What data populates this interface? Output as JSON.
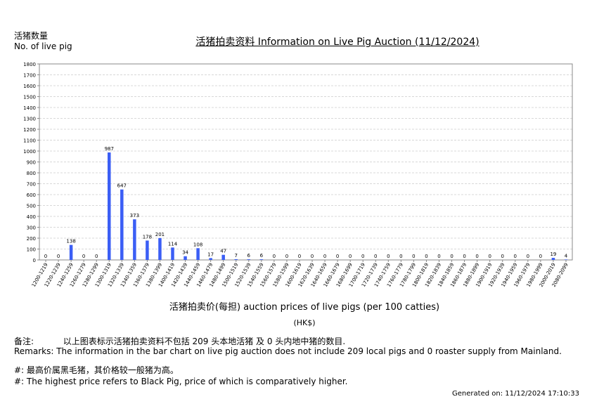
{
  "header": {
    "ylabel_cn": "活猪数量",
    "ylabel_en": "No. of live pig",
    "title": "活猪拍卖资料 Information on Live Pig Auction (11/12/2024)"
  },
  "axis": {
    "xlabel": "活猪拍卖价(每担) auction prices of live pigs (per 100 catties)",
    "currency": "(HK$)"
  },
  "notes": {
    "remark_cn_label": "备注:",
    "remark_cn": "以上图表标示活猪拍卖资料不包括 209 头本地活猪 及 0 头内地中猪的数目.",
    "remark_en": "Remarks: The information in the bar chart on live pig auction does not include 209 local pigs and 0 roaster supply from Mainland.",
    "hash_cn": "#: 最高价属黑毛猪，其价格较一般猪为高。",
    "hash_en": "#: The highest price refers to Black Pig, price of which is comparatively higher."
  },
  "generated": "Generated on: 11/12/2024 17:10:33",
  "colors": {
    "bar": "#3b5ef5",
    "grid": "#d8d8d8",
    "axis": "#888888"
  },
  "chart_data": {
    "type": "bar",
    "ylim": [
      0,
      1800
    ],
    "yticks": [
      0,
      100,
      200,
      300,
      400,
      500,
      600,
      700,
      800,
      900,
      1000,
      1100,
      1200,
      1300,
      1400,
      1500,
      1600,
      1700,
      1800
    ],
    "grid": true,
    "categories": [
      "1200-1219",
      "1220-1239",
      "1240-1259",
      "1260-1279",
      "1280-1299",
      "1300-1319",
      "1320-1339",
      "1340-1359",
      "1360-1379",
      "1380-1399",
      "1400-1419",
      "1420-1439",
      "1440-1459",
      "1460-1479",
      "1480-1499",
      "1500-1519",
      "1520-1539",
      "1540-1559",
      "1560-1579",
      "1580-1599",
      "1600-1619",
      "1620-1639",
      "1640-1659",
      "1660-1679",
      "1680-1699",
      "1700-1719",
      "1720-1739",
      "1740-1759",
      "1760-1779",
      "1780-1799",
      "1800-1819",
      "1820-1839",
      "1840-1859",
      "1860-1879",
      "1880-1899",
      "1900-1919",
      "1920-1939",
      "1940-1959",
      "1960-1979",
      "1980-1999",
      "2000-2019",
      "2080-2099"
    ],
    "values": [
      0,
      0,
      138,
      0,
      0,
      987,
      647,
      373,
      178,
      201,
      114,
      34,
      108,
      17,
      47,
      7,
      6,
      6,
      0,
      0,
      0,
      0,
      0,
      0,
      0,
      0,
      0,
      0,
      0,
      0,
      0,
      0,
      0,
      0,
      0,
      0,
      0,
      0,
      0,
      0,
      19,
      4
    ]
  }
}
